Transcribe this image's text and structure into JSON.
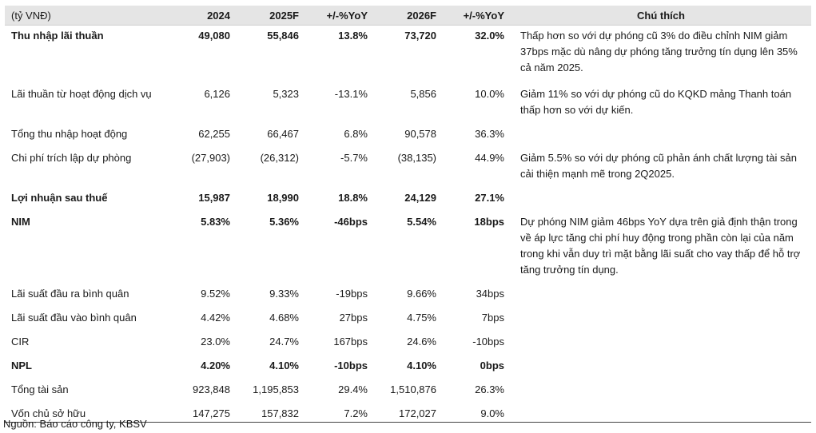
{
  "top_clip": "",
  "header": {
    "label": "(tỷ VNĐ)",
    "cols": [
      "2024",
      "2025F",
      "+/-%YoY",
      "2026F",
      "+/-%YoY"
    ],
    "note": "Chú thích"
  },
  "rows": [
    {
      "label": "Thu nhập lãi thuần",
      "bold": true,
      "v": [
        "49,080",
        "55,846",
        "13.8%",
        "73,720",
        "32.0%"
      ],
      "note": "Thấp hơn so với dự phóng cũ 3% do điều chỉnh NIM giảm 37bps mặc dù nâng dự phóng tăng trưởng tín dụng lên 35% cả năm 2025."
    },
    {
      "label": "Lãi thuần từ hoạt động dịch vụ",
      "bold": false,
      "v": [
        "6,126",
        "5,323",
        "-13.1%",
        "5,856",
        "10.0%"
      ],
      "note": "Giảm 11% so với dự phóng cũ do KQKD mảng Thanh toán thấp hơn so với dự kiến."
    },
    {
      "label": "Tổng thu nhập hoạt động",
      "bold": false,
      "v": [
        "62,255",
        "66,467",
        "6.8%",
        "90,578",
        "36.3%"
      ],
      "note": ""
    },
    {
      "label": "Chi phí trích lập dự phòng",
      "bold": false,
      "v": [
        "(27,903)",
        "(26,312)",
        "-5.7%",
        "(38,135)",
        "44.9%"
      ],
      "note": "Giảm 5.5% so với dự phóng cũ phản ánh chất lượng tài sản cải thiện mạnh mẽ trong 2Q2025."
    },
    {
      "label": "Lợi nhuận sau thuế",
      "bold": true,
      "v": [
        "15,987",
        "18,990",
        "18.8%",
        "24,129",
        "27.1%"
      ],
      "note": ""
    },
    {
      "label": "NIM",
      "bold": true,
      "v": [
        "5.83%",
        "5.36%",
        "-46bps",
        "5.54%",
        "18bps"
      ],
      "note": "Dự phóng NIM giảm 46bps YoY dựa trên giả định thận trong về áp lực tăng chi phí huy động trong phần còn lại của năm trong khi vẫn duy trì mặt bằng lãi suất cho vay thấp để hỗ trợ tăng trưởng tín dụng."
    },
    {
      "label": "Lãi suất đầu ra bình quân",
      "bold": false,
      "v": [
        "9.52%",
        "9.33%",
        "-19bps",
        "9.66%",
        "34bps"
      ],
      "note": ""
    },
    {
      "label": "Lãi suất đầu vào bình quân",
      "bold": false,
      "v": [
        "4.42%",
        "4.68%",
        "27bps",
        "4.75%",
        "7bps"
      ],
      "note": ""
    },
    {
      "label": "CIR",
      "bold": false,
      "v": [
        "23.0%",
        "24.7%",
        "167bps",
        "24.6%",
        "-10bps"
      ],
      "note": ""
    },
    {
      "label": "NPL",
      "bold": true,
      "v": [
        "4.20%",
        "4.10%",
        "-10bps",
        "4.10%",
        "0bps"
      ],
      "note": ""
    },
    {
      "label": "Tổng tài sản",
      "bold": false,
      "v": [
        "923,848",
        "1,195,853",
        "29.4%",
        "1,510,876",
        "26.3%"
      ],
      "note": ""
    },
    {
      "label": "Vốn chủ sở hữu",
      "bold": false,
      "v": [
        "147,275",
        "157,832",
        "7.2%",
        "172,027",
        "9.0%"
      ],
      "note": ""
    }
  ],
  "source": "Nguồn: Báo cáo công ty, KBSV"
}
